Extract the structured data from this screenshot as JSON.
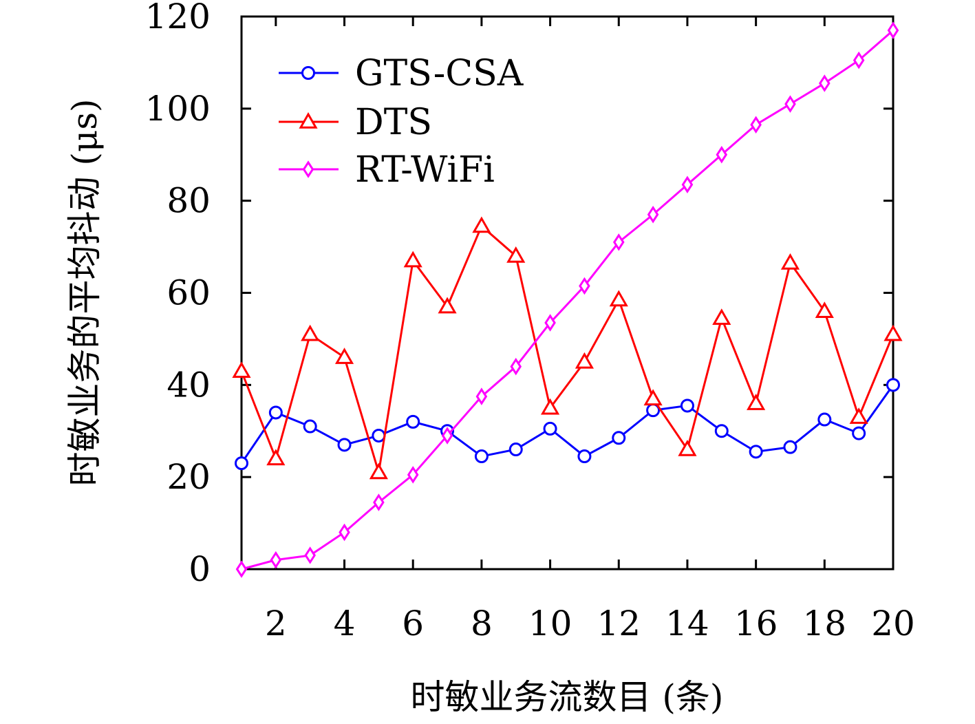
{
  "chart_data": {
    "type": "line",
    "xlabel": "时敏业务流数目 (条)",
    "ylabel": "时敏业务的平均抖动 (μs)",
    "x": [
      1,
      2,
      3,
      4,
      5,
      6,
      7,
      8,
      9,
      10,
      11,
      12,
      13,
      14,
      15,
      16,
      17,
      18,
      19,
      20
    ],
    "xlim": [
      1,
      20
    ],
    "ylim": [
      0,
      120
    ],
    "xticks": [
      "2",
      "4",
      "6",
      "8",
      "10",
      "12",
      "14",
      "16",
      "18",
      "20"
    ],
    "yticks": [
      "0",
      "20",
      "40",
      "60",
      "80",
      "100",
      "120"
    ],
    "legend_position": "top-left",
    "grid": false,
    "series": [
      {
        "name": "GTS-CSA",
        "color": "#0000ff",
        "marker": "circle",
        "values": [
          23,
          34,
          31,
          27,
          29,
          32,
          30,
          24.5,
          26,
          30.5,
          24.5,
          28.5,
          34.5,
          35.5,
          30,
          25.5,
          26.5,
          32.5,
          29.5,
          40
        ]
      },
      {
        "name": "DTS",
        "color": "#ff0000",
        "marker": "triangle",
        "values": [
          43,
          24,
          51,
          46,
          21,
          67,
          57,
          74.5,
          68,
          35,
          45,
          58.5,
          37,
          26,
          54.5,
          36,
          66.5,
          56,
          33,
          51
        ]
      },
      {
        "name": "RT-WiFi",
        "color": "#ff00ff",
        "marker": "diamond",
        "values": [
          0,
          2,
          3,
          8,
          14.5,
          20.5,
          29,
          37.5,
          44,
          53.5,
          61.5,
          71,
          77,
          83.5,
          90,
          96.5,
          101,
          105.5,
          110.5,
          117
        ]
      }
    ]
  }
}
